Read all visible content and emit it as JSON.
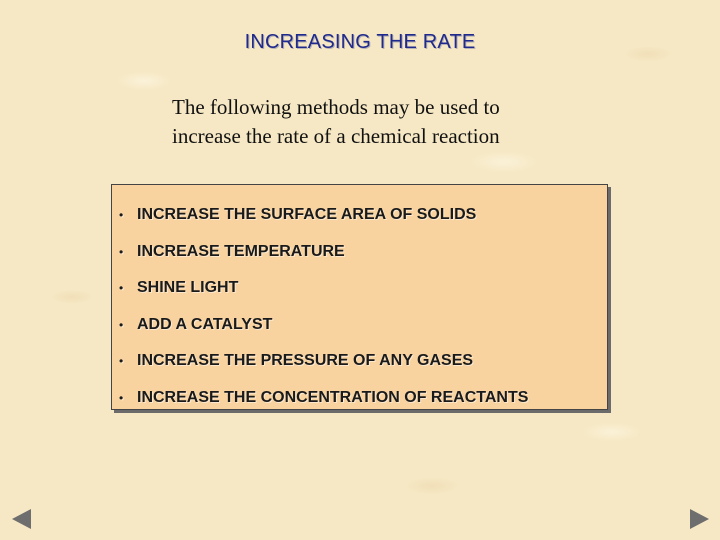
{
  "slide": {
    "title": "INCREASING THE RATE",
    "intro_lines": [
      "The following methods may be used to",
      "increase the rate of a chemical reaction"
    ],
    "methods": [
      "INCREASE THE SURFACE AREA OF SOLIDS",
      "INCREASE TEMPERATURE",
      "SHINE LIGHT",
      "ADD A CATALYST",
      "INCREASE THE PRESSURE OF ANY GASES",
      "INCREASE THE CONCENTRATION OF REACTANTS"
    ],
    "bullet_char": "•"
  },
  "navigation": {
    "prev_icon": "triangle-left-icon",
    "next_icon": "triangle-right-icon"
  },
  "colors": {
    "background": "#f6e8c4",
    "title": "#1f2a8c",
    "panel": "#f8d3a0",
    "arrow": "#6e6e6e"
  }
}
